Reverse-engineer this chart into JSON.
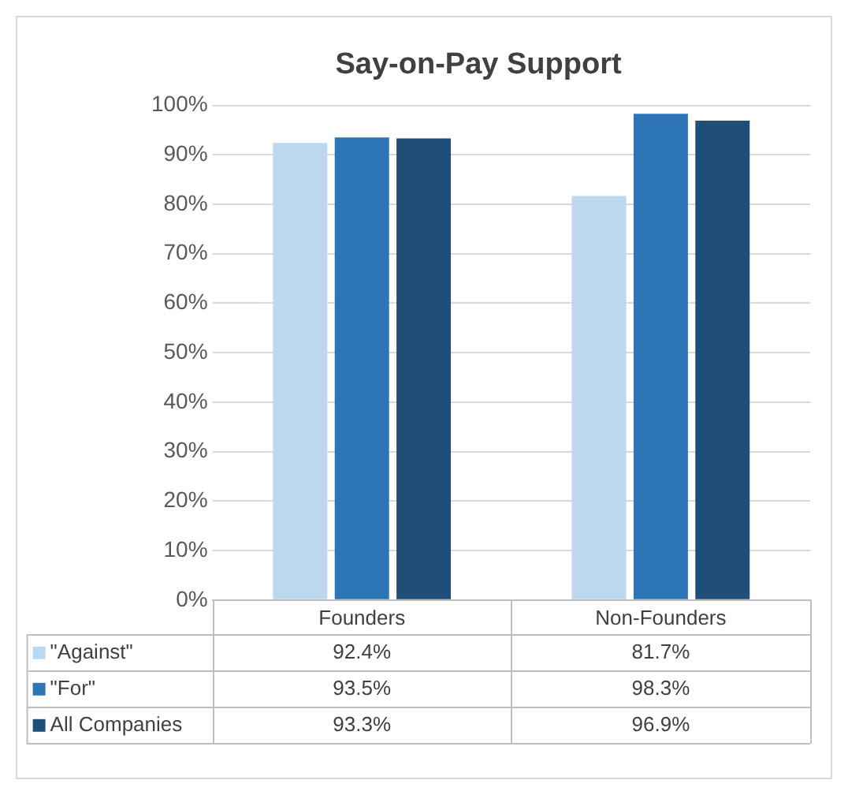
{
  "chart_data": {
    "type": "bar",
    "title": "Say-on-Pay Support",
    "categories": [
      "Founders",
      "Non-Founders"
    ],
    "series": [
      {
        "name": "\"Against\"",
        "color": "#bdd7ee",
        "values": [
          92.4,
          81.7
        ],
        "value_labels": [
          "92.4%",
          "81.7%"
        ]
      },
      {
        "name": "\"For\"",
        "color": "#2e75b6",
        "values": [
          93.5,
          98.3
        ],
        "value_labels": [
          "93.5%",
          "98.3%"
        ]
      },
      {
        "name": "All Companies",
        "color": "#1f4e79",
        "values": [
          93.3,
          96.9
        ],
        "value_labels": [
          "93.3%",
          "96.9%"
        ]
      }
    ],
    "ylim": [
      0,
      100
    ],
    "yticks": [
      {
        "value": 0,
        "label": "0%"
      },
      {
        "value": 10,
        "label": "10%"
      },
      {
        "value": 20,
        "label": "20%"
      },
      {
        "value": 30,
        "label": "30%"
      },
      {
        "value": 40,
        "label": "40%"
      },
      {
        "value": 50,
        "label": "50%"
      },
      {
        "value": 60,
        "label": "60%"
      },
      {
        "value": 70,
        "label": "70%"
      },
      {
        "value": 80,
        "label": "80%"
      },
      {
        "value": 90,
        "label": "90%"
      },
      {
        "value": 100,
        "label": "100%"
      }
    ],
    "grid": "y",
    "legend": "bottom"
  }
}
